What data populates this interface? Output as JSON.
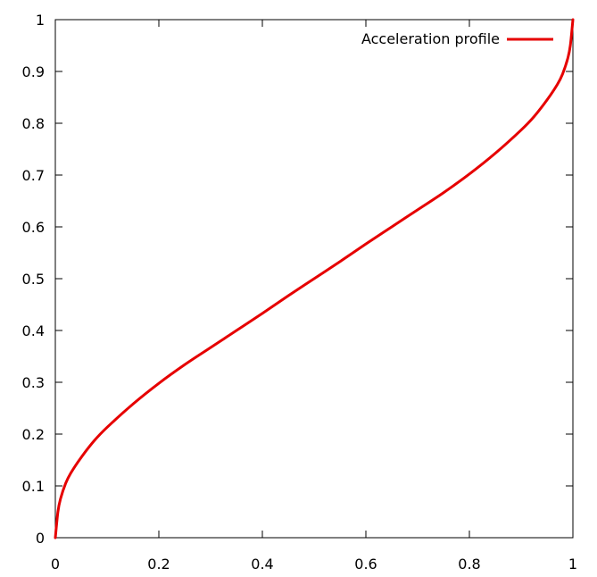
{
  "chart_data": {
    "type": "line",
    "title": "",
    "xlabel": "",
    "ylabel": "",
    "xlim": [
      0,
      1
    ],
    "ylim": [
      0,
      1
    ],
    "grid": false,
    "legend_position": "top-right",
    "x_ticks": [
      "0",
      "0.2",
      "0.4",
      "0.6",
      "0.8",
      "1"
    ],
    "y_ticks": [
      "0",
      "0.1",
      "0.2",
      "0.3",
      "0.4",
      "0.5",
      "0.6",
      "0.7",
      "0.8",
      "0.9",
      "1"
    ],
    "series": [
      {
        "name": "Acceleration profile",
        "color": "#e60000",
        "x": [
          0,
          0.005,
          0.01,
          0.02,
          0.03,
          0.05,
          0.075,
          0.1,
          0.15,
          0.2,
          0.25,
          0.3,
          0.35,
          0.4,
          0.45,
          0.5,
          0.55,
          0.6,
          0.65,
          0.7,
          0.75,
          0.8,
          0.85,
          0.9,
          0.925,
          0.95,
          0.97,
          0.98,
          0.99,
          0.995,
          1
        ],
        "y": [
          0,
          0.05,
          0.075,
          0.105,
          0.125,
          0.155,
          0.187,
          0.213,
          0.258,
          0.298,
          0.334,
          0.367,
          0.4,
          0.433,
          0.467,
          0.5,
          0.533,
          0.567,
          0.6,
          0.633,
          0.666,
          0.702,
          0.742,
          0.787,
          0.813,
          0.845,
          0.875,
          0.895,
          0.925,
          0.95,
          1
        ]
      }
    ]
  }
}
